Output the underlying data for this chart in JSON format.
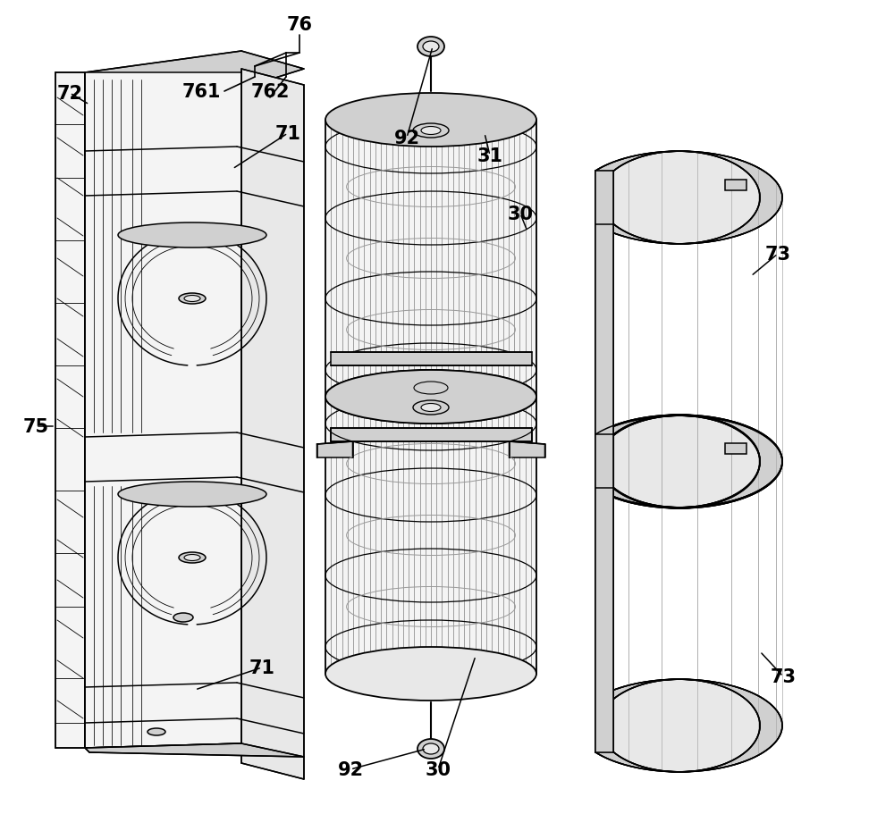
{
  "figsize": [
    10.0,
    9.12
  ],
  "dpi": 100,
  "bg_color": "#ffffff",
  "lw": 1.1,
  "fs": 15,
  "gray1": "#e8e8e8",
  "gray2": "#d0d0d0",
  "gray3": "#f4f4f4"
}
